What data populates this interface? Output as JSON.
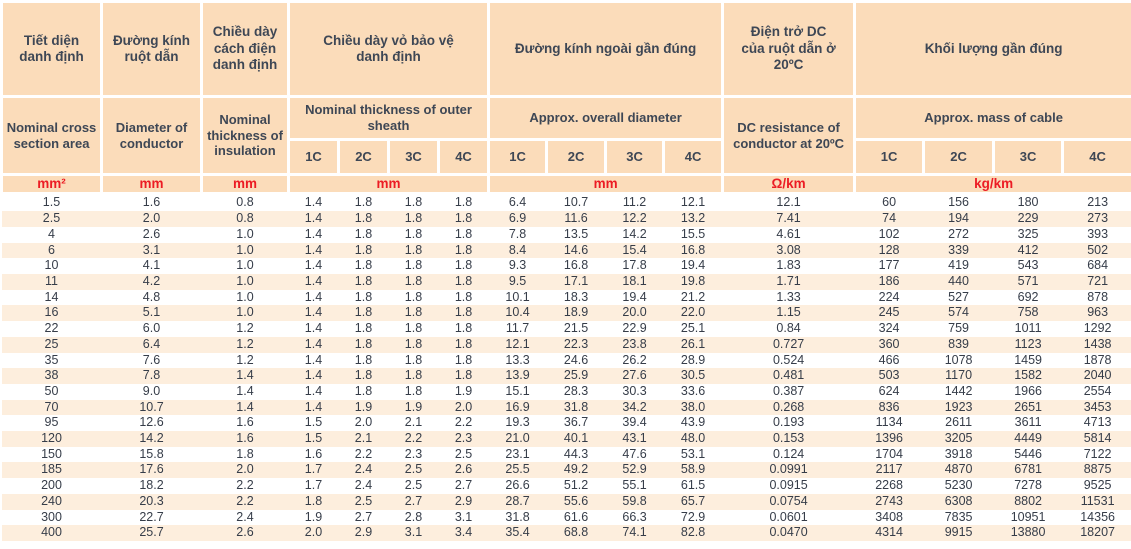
{
  "colors": {
    "header_bg": "#fbdcba",
    "stripe_bg": "#fdeedd",
    "header_text": "#3e4755",
    "unit_text": "#ec1c24",
    "data_text": "#363d49"
  },
  "header": {
    "groups": [
      {
        "vn": "Tiết diện\ndanh định",
        "en": "Nominal cross section area",
        "unit": "mm²"
      },
      {
        "vn": "Đường kính\nruột dẫn",
        "en": "Diameter of conductor",
        "unit": "mm"
      },
      {
        "vn": "Chiều dày\ncách điện\ndanh định",
        "en": "Nominal\nthickness of\ninsulation",
        "unit": "mm"
      },
      {
        "vn": "Chiều dày vỏ bảo vệ\ndanh định",
        "en": "Nominal thickness of outer\nsheath",
        "unit": "mm"
      },
      {
        "vn": "Đường kính ngoài gần đúng",
        "en": "Approx. overall diameter",
        "unit": "mm"
      },
      {
        "vn": "Điện trở DC\ncủa ruột dẫn ở 20ºC",
        "en": "DC resistance of\nconductor at 20ºC",
        "unit": "Ω/km"
      },
      {
        "vn": "Khối lượng gần đúng",
        "en": "Approx. mass of cable",
        "unit": "kg/km"
      }
    ],
    "sub_labels": [
      "1C",
      "2C",
      "3C",
      "4C"
    ]
  },
  "table": {
    "rows": [
      [
        "1.5",
        "1.6",
        "0.8",
        "1.4",
        "1.8",
        "1.8",
        "1.8",
        "6.4",
        "10.7",
        "11.2",
        "12.1",
        "12.1",
        "60",
        "156",
        "180",
        "213"
      ],
      [
        "2.5",
        "2.0",
        "0.8",
        "1.4",
        "1.8",
        "1.8",
        "1.8",
        "6.9",
        "11.6",
        "12.2",
        "13.2",
        "7.41",
        "74",
        "194",
        "229",
        "273"
      ],
      [
        "4",
        "2.6",
        "1.0",
        "1.4",
        "1.8",
        "1.8",
        "1.8",
        "7.8",
        "13.5",
        "14.2",
        "15.5",
        "4.61",
        "102",
        "272",
        "325",
        "393"
      ],
      [
        "6",
        "3.1",
        "1.0",
        "1.4",
        "1.8",
        "1.8",
        "1.8",
        "8.4",
        "14.6",
        "15.4",
        "16.8",
        "3.08",
        "128",
        "339",
        "412",
        "502"
      ],
      [
        "10",
        "4.1",
        "1.0",
        "1.4",
        "1.8",
        "1.8",
        "1.8",
        "9.3",
        "16.8",
        "17.8",
        "19.4",
        "1.83",
        "177",
        "419",
        "543",
        "684"
      ],
      [
        "11",
        "4.2",
        "1.0",
        "1.4",
        "1.8",
        "1.8",
        "1.8",
        "9.5",
        "17.1",
        "18.1",
        "19.8",
        "1.71",
        "186",
        "440",
        "571",
        "721"
      ],
      [
        "14",
        "4.8",
        "1.0",
        "1.4",
        "1.8",
        "1.8",
        "1.8",
        "10.1",
        "18.3",
        "19.4",
        "21.2",
        "1.33",
        "224",
        "527",
        "692",
        "878"
      ],
      [
        "16",
        "5.1",
        "1.0",
        "1.4",
        "1.8",
        "1.8",
        "1.8",
        "10.4",
        "18.9",
        "20.0",
        "22.0",
        "1.15",
        "245",
        "574",
        "758",
        "963"
      ],
      [
        "22",
        "6.0",
        "1.2",
        "1.4",
        "1.8",
        "1.8",
        "1.8",
        "11.7",
        "21.5",
        "22.9",
        "25.1",
        "0.84",
        "324",
        "759",
        "1011",
        "1292"
      ],
      [
        "25",
        "6.4",
        "1.2",
        "1.4",
        "1.8",
        "1.8",
        "1.8",
        "12.1",
        "22.3",
        "23.8",
        "26.1",
        "0.727",
        "360",
        "839",
        "1123",
        "1438"
      ],
      [
        "35",
        "7.6",
        "1.2",
        "1.4",
        "1.8",
        "1.8",
        "1.8",
        "13.3",
        "24.6",
        "26.2",
        "28.9",
        "0.524",
        "466",
        "1078",
        "1459",
        "1878"
      ],
      [
        "38",
        "7.8",
        "1.4",
        "1.4",
        "1.8",
        "1.8",
        "1.8",
        "13.9",
        "25.9",
        "27.6",
        "30.5",
        "0.481",
        "503",
        "1170",
        "1582",
        "2040"
      ],
      [
        "50",
        "9.0",
        "1.4",
        "1.4",
        "1.8",
        "1.8",
        "1.9",
        "15.1",
        "28.3",
        "30.3",
        "33.6",
        "0.387",
        "624",
        "1442",
        "1966",
        "2554"
      ],
      [
        "70",
        "10.7",
        "1.4",
        "1.4",
        "1.9",
        "1.9",
        "2.0",
        "16.9",
        "31.8",
        "34.2",
        "38.0",
        "0.268",
        "836",
        "1923",
        "2651",
        "3453"
      ],
      [
        "95",
        "12.6",
        "1.6",
        "1.5",
        "2.0",
        "2.1",
        "2.2",
        "19.3",
        "36.7",
        "39.4",
        "43.9",
        "0.193",
        "1134",
        "2611",
        "3611",
        "4713"
      ],
      [
        "120",
        "14.2",
        "1.6",
        "1.5",
        "2.1",
        "2.2",
        "2.3",
        "21.0",
        "40.1",
        "43.1",
        "48.0",
        "0.153",
        "1396",
        "3205",
        "4449",
        "5814"
      ],
      [
        "150",
        "15.8",
        "1.8",
        "1.6",
        "2.2",
        "2.3",
        "2.5",
        "23.1",
        "44.3",
        "47.6",
        "53.1",
        "0.124",
        "1704",
        "3918",
        "5446",
        "7122"
      ],
      [
        "185",
        "17.6",
        "2.0",
        "1.7",
        "2.4",
        "2.5",
        "2.6",
        "25.5",
        "49.2",
        "52.9",
        "58.9",
        "0.0991",
        "2117",
        "4870",
        "6781",
        "8875"
      ],
      [
        "200",
        "18.2",
        "2.2",
        "1.7",
        "2.4",
        "2.5",
        "2.7",
        "26.6",
        "51.2",
        "55.1",
        "61.5",
        "0.0915",
        "2268",
        "5230",
        "7278",
        "9525"
      ],
      [
        "240",
        "20.3",
        "2.2",
        "1.8",
        "2.5",
        "2.7",
        "2.9",
        "28.7",
        "55.6",
        "59.8",
        "65.7",
        "0.0754",
        "2743",
        "6308",
        "8802",
        "11531"
      ],
      [
        "300",
        "22.7",
        "2.4",
        "1.9",
        "2.7",
        "2.8",
        "3.1",
        "31.8",
        "61.6",
        "66.3",
        "72.9",
        "0.0601",
        "3408",
        "7835",
        "10951",
        "14356"
      ],
      [
        "400",
        "25.7",
        "2.6",
        "2.0",
        "2.9",
        "3.1",
        "3.4",
        "35.4",
        "68.8",
        "74.1",
        "82.8",
        "0.0470",
        "4314",
        "9915",
        "13880",
        "18207"
      ]
    ]
  }
}
